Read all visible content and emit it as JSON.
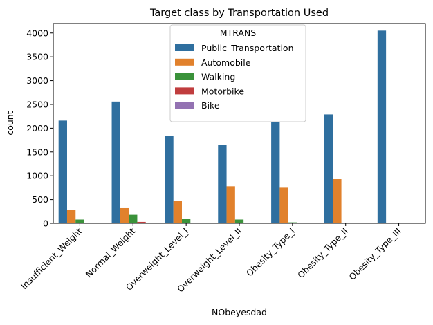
{
  "chart_data": {
    "type": "bar",
    "title": "Target class by Transportation Used",
    "xlabel": "NObeyesdad",
    "ylabel": "count",
    "ylim": [
      0,
      4200
    ],
    "yticks": [
      0,
      500,
      1000,
      1500,
      2000,
      2500,
      3000,
      3500,
      4000
    ],
    "categories": [
      "Insufficient_Weight",
      "Normal_Weight",
      "Overweight_Level_I",
      "Overweight_Level_II",
      "Obesity_Type_I",
      "Obesity_Type_II",
      "Obesity_Type_III"
    ],
    "legend_title": "MTRANS",
    "legend_position": "upper-center",
    "grid": false,
    "series": [
      {
        "name": "Public_Transportation",
        "color": "#2f6f9f",
        "values": [
          2160,
          2560,
          1840,
          1650,
          2130,
          2290,
          4050
        ]
      },
      {
        "name": "Automobile",
        "color": "#e1812c",
        "values": [
          290,
          320,
          470,
          780,
          750,
          930,
          0
        ]
      },
      {
        "name": "Walking",
        "color": "#3a923a",
        "values": [
          80,
          180,
          90,
          80,
          20,
          0,
          0
        ]
      },
      {
        "name": "Motorbike",
        "color": "#c03d3e",
        "values": [
          10,
          30,
          10,
          10,
          10,
          10,
          0
        ]
      },
      {
        "name": "Bike",
        "color": "#9372b2",
        "values": [
          5,
          5,
          5,
          5,
          5,
          5,
          0
        ]
      }
    ]
  }
}
